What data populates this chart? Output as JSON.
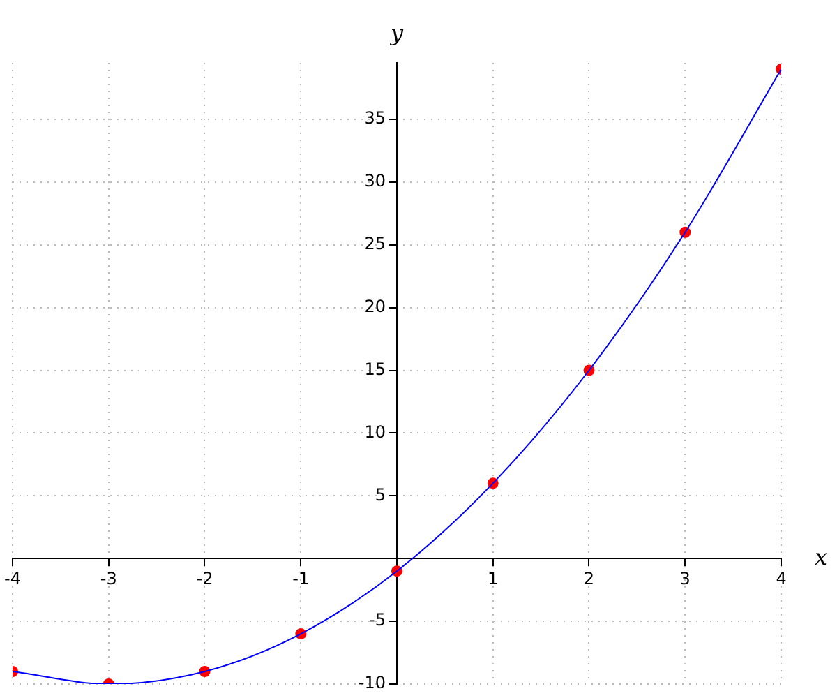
{
  "chart_data": {
    "type": "line",
    "xlabel": "x",
    "ylabel": "y",
    "x": [
      -4,
      -3,
      -2,
      -1,
      0,
      1,
      2,
      3,
      4
    ],
    "series": [
      {
        "color": "#0000ff",
        "marker": "none",
        "values": [
          -9,
          -10,
          -9,
          -6,
          -1,
          6,
          15,
          26,
          39
        ]
      },
      {
        "type": "scatter",
        "color": "#ff0000",
        "marker": "circle",
        "values": [
          -9,
          -10,
          -9,
          -6,
          -1,
          6,
          15,
          26,
          39
        ]
      }
    ],
    "xlim": [
      -4,
      4
    ],
    "xticks": [
      -4,
      -3,
      -2,
      -1,
      1,
      2,
      3,
      4
    ],
    "ylim": [
      -10,
      39.5
    ],
    "yticks": [
      -10,
      -5,
      5,
      10,
      15,
      20,
      25,
      30,
      35
    ],
    "grid": true,
    "legend": false
  }
}
